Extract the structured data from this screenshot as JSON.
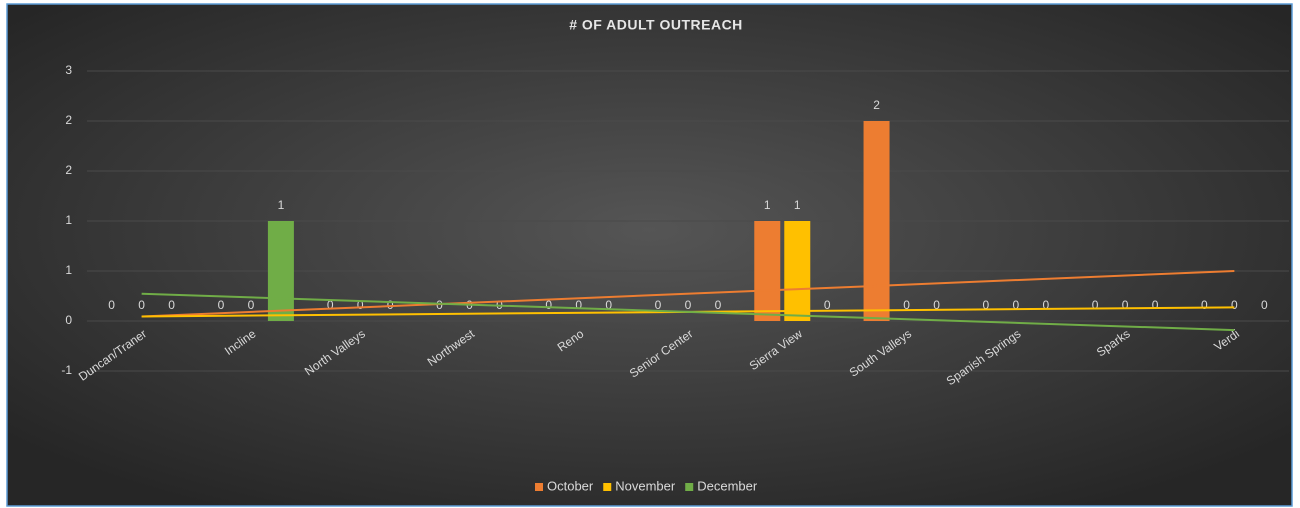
{
  "chart_data": {
    "type": "bar",
    "title": "# OF ADULT OUTREACH",
    "categories": [
      "Duncan/Traner",
      "Incline",
      "North Valleys",
      "Northwest",
      "Reno",
      "Senior Center",
      "Sierra View",
      "South Valleys",
      "Spanish Springs",
      "Sparks",
      "Verdi"
    ],
    "series": [
      {
        "name": "October",
        "color": "#ed7d31",
        "values": [
          0,
          0,
          0,
          0,
          0,
          0,
          1,
          2,
          0,
          0,
          0
        ]
      },
      {
        "name": "November",
        "color": "#ffc000",
        "values": [
          0,
          0,
          0,
          0,
          0,
          0,
          1,
          0,
          0,
          0,
          0
        ]
      },
      {
        "name": "December",
        "color": "#70ad47",
        "values": [
          0,
          1,
          0,
          0,
          0,
          0,
          0,
          0,
          0,
          0,
          0
        ]
      }
    ],
    "ylim": [
      -0.5,
      2.5
    ],
    "yticks": [
      {
        "value": -0.5,
        "label": "-1"
      },
      0,
      {
        "value": 0.5,
        "label": "1"
      },
      1,
      {
        "value": 1.5,
        "label": "2"
      },
      2,
      {
        "value": 2.5,
        "label": "3"
      }
    ],
    "grid": true,
    "trendline": "linear",
    "legend": "bottom"
  }
}
